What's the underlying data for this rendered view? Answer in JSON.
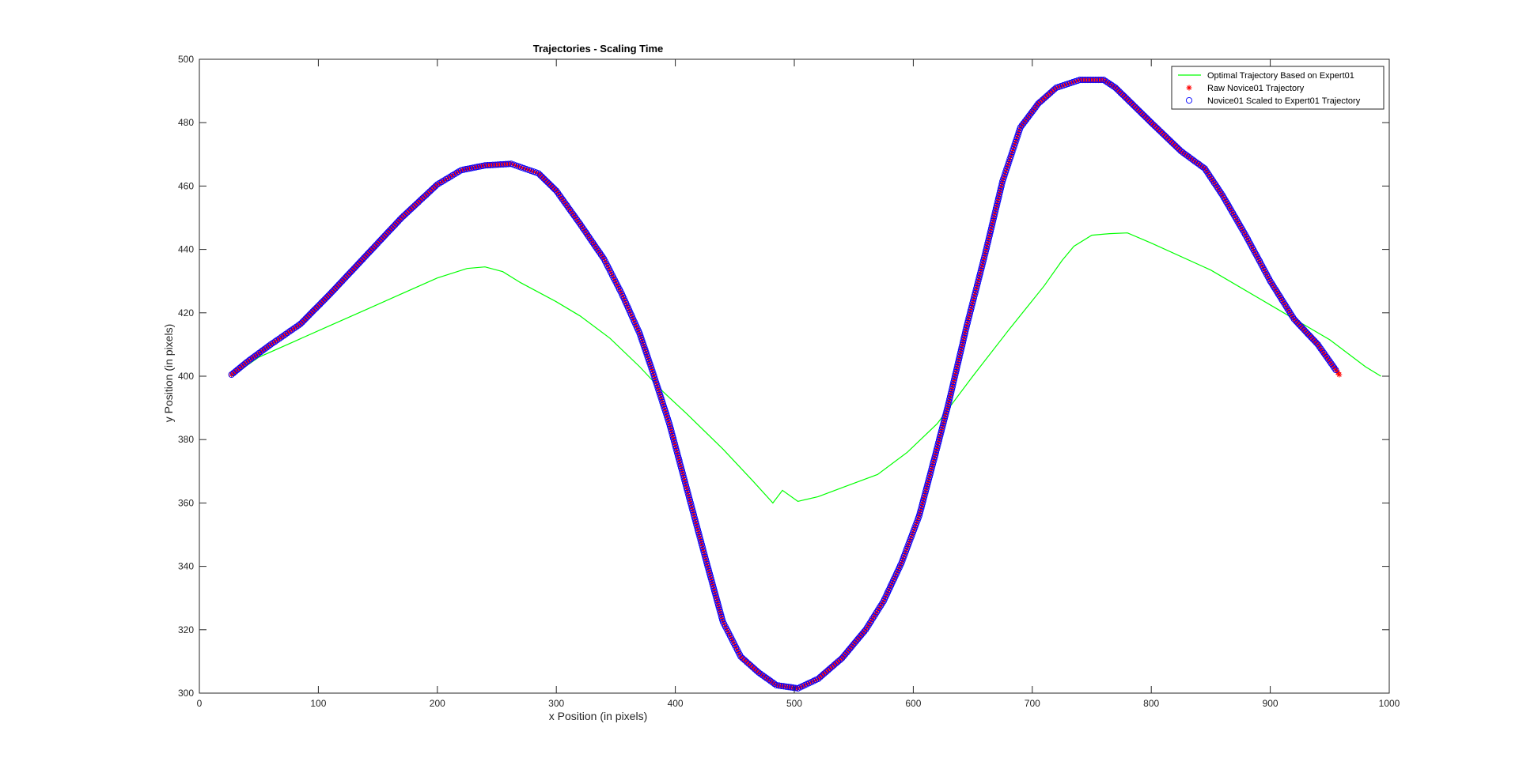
{
  "chart_data": {
    "type": "line",
    "title": "Trajectories - Scaling Time",
    "xlabel": "x Position (in pixels)",
    "ylabel": "y Position (in pixels)",
    "xlim": [
      0,
      1000
    ],
    "ylim": [
      300,
      500
    ],
    "xticks": [
      0,
      100,
      200,
      300,
      400,
      500,
      600,
      700,
      800,
      900,
      1000
    ],
    "yticks": [
      300,
      320,
      340,
      360,
      380,
      400,
      420,
      440,
      460,
      480,
      500
    ],
    "grid": false,
    "legend_position": "top-right",
    "colors": {
      "expert": "#00ff00",
      "raw": "#ff0000",
      "scaled": "#0000ff",
      "axes": "#262626"
    },
    "series": [
      {
        "name": "Optimal Trajectory Based on Expert01",
        "style": "line",
        "color": "#00ff00",
        "x": [
          27,
          50,
          80,
          110,
          140,
          170,
          200,
          225,
          240,
          255,
          270,
          300,
          320,
          345,
          370,
          390,
          410,
          440,
          465,
          482,
          490,
          503,
          520,
          545,
          570,
          595,
          620,
          650,
          680,
          710,
          725,
          735,
          750,
          765,
          780,
          800,
          850,
          900,
          950,
          980,
          993
        ],
        "y": [
          400,
          406,
          411,
          416,
          421,
          426,
          431,
          434,
          434.5,
          433,
          429.5,
          423.5,
          419,
          412,
          403,
          395,
          388,
          377,
          367,
          360,
          364,
          360.5,
          362,
          365.5,
          369,
          376,
          385,
          400,
          414.5,
          428.5,
          436.5,
          441,
          444.5,
          445,
          445.2,
          442,
          433.5,
          422.5,
          411.5,
          403,
          400
        ]
      },
      {
        "name": "Raw Novice01 Trajectory",
        "style": "marker-asterisk",
        "color": "#ff0000",
        "x": [
          27,
          40,
          60,
          85,
          110,
          140,
          170,
          200,
          220,
          240,
          262,
          285,
          300,
          320,
          340,
          355,
          370,
          380,
          395,
          410,
          425,
          440,
          455,
          470,
          485,
          503,
          520,
          540,
          560,
          575,
          590,
          605,
          618,
          630,
          645,
          660,
          675,
          690,
          705,
          720,
          740,
          760,
          770,
          800,
          825,
          845,
          860,
          880,
          900,
          920,
          940,
          958
        ],
        "y": [
          400.5,
          404.5,
          410,
          416.5,
          426,
          438,
          450,
          460.5,
          465,
          466.5,
          467,
          464,
          458.5,
          448,
          437,
          426,
          413.5,
          402.5,
          385,
          364,
          343,
          322.5,
          311.5,
          306.5,
          302.5,
          301.5,
          304.5,
          311,
          320,
          329,
          341,
          356,
          374.5,
          392,
          416,
          438,
          461.5,
          478.5,
          486,
          491,
          493.5,
          493.5,
          491,
          480,
          471,
          465.5,
          457,
          444,
          430,
          418,
          410,
          400.5
        ]
      },
      {
        "name": "Novice01 Scaled to Expert01 Trajectory",
        "style": "marker-circle",
        "color": "#0000ff",
        "x": [
          27,
          40,
          60,
          85,
          110,
          140,
          170,
          200,
          220,
          240,
          262,
          285,
          300,
          320,
          340,
          355,
          370,
          380,
          395,
          410,
          425,
          440,
          455,
          470,
          485,
          503,
          520,
          540,
          560,
          575,
          590,
          605,
          618,
          630,
          645,
          660,
          675,
          690,
          705,
          720,
          740,
          760,
          770,
          800,
          825,
          845,
          860,
          880,
          900,
          920,
          940,
          955
        ],
        "y": [
          400.5,
          404.5,
          410,
          416.5,
          426,
          438,
          450,
          460.5,
          465,
          466.5,
          467,
          464,
          458.5,
          448,
          437,
          426,
          413.5,
          402.5,
          385,
          364,
          343,
          322.5,
          311.5,
          306.5,
          302.5,
          301.5,
          304.5,
          311,
          320,
          329,
          341,
          356,
          374.5,
          392,
          416,
          438,
          461.5,
          478.5,
          486,
          491,
          493.5,
          493.5,
          491,
          480,
          471,
          465.5,
          457,
          444,
          430,
          418,
          410,
          402
        ]
      }
    ]
  }
}
